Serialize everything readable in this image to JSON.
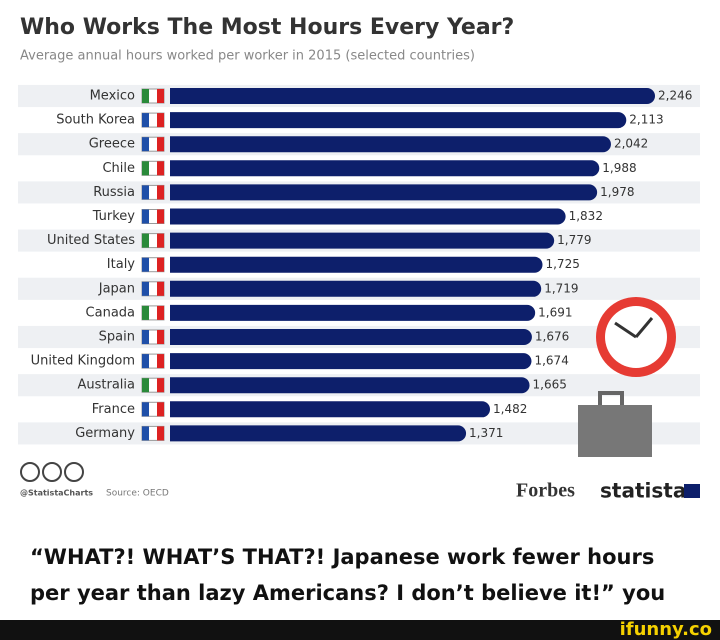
{
  "chart_data": {
    "type": "hbar",
    "title": "Who Works The Most Hours Every Year?",
    "subtitle": "Average annual hours worked per worker in 2015 (selected countries)",
    "categories": [
      "Mexico",
      "South Korea",
      "Greece",
      "Chile",
      "Russia",
      "Turkey",
      "United States",
      "Italy",
      "Japan",
      "Canada",
      "Spain",
      "United Kingdom",
      "Australia",
      "France",
      "Germany"
    ],
    "values": [
      2246,
      2113,
      2042,
      1988,
      1978,
      1832,
      1779,
      1725,
      1719,
      1691,
      1676,
      1674,
      1665,
      1482,
      1371
    ],
    "value_labels": [
      "2,246",
      "2,113",
      "2,042",
      "1,988",
      "1,978",
      "1,832",
      "1,779",
      "1,725",
      "1,719",
      "1,691",
      "1,676",
      "1,674",
      "1,665",
      "1,482",
      "1,371"
    ],
    "color": "#0d1f6b",
    "credit": "@StatistaCharts",
    "source": "Source: OECD",
    "brands": [
      "Forbes",
      "statista"
    ]
  },
  "caption": [
    "“WHAT?! WHAT’S THAT?! Japanese work fewer hours",
    "per year than lazy Americans? I don’t believe it!” you"
  ],
  "watermark": "ifunny.co"
}
